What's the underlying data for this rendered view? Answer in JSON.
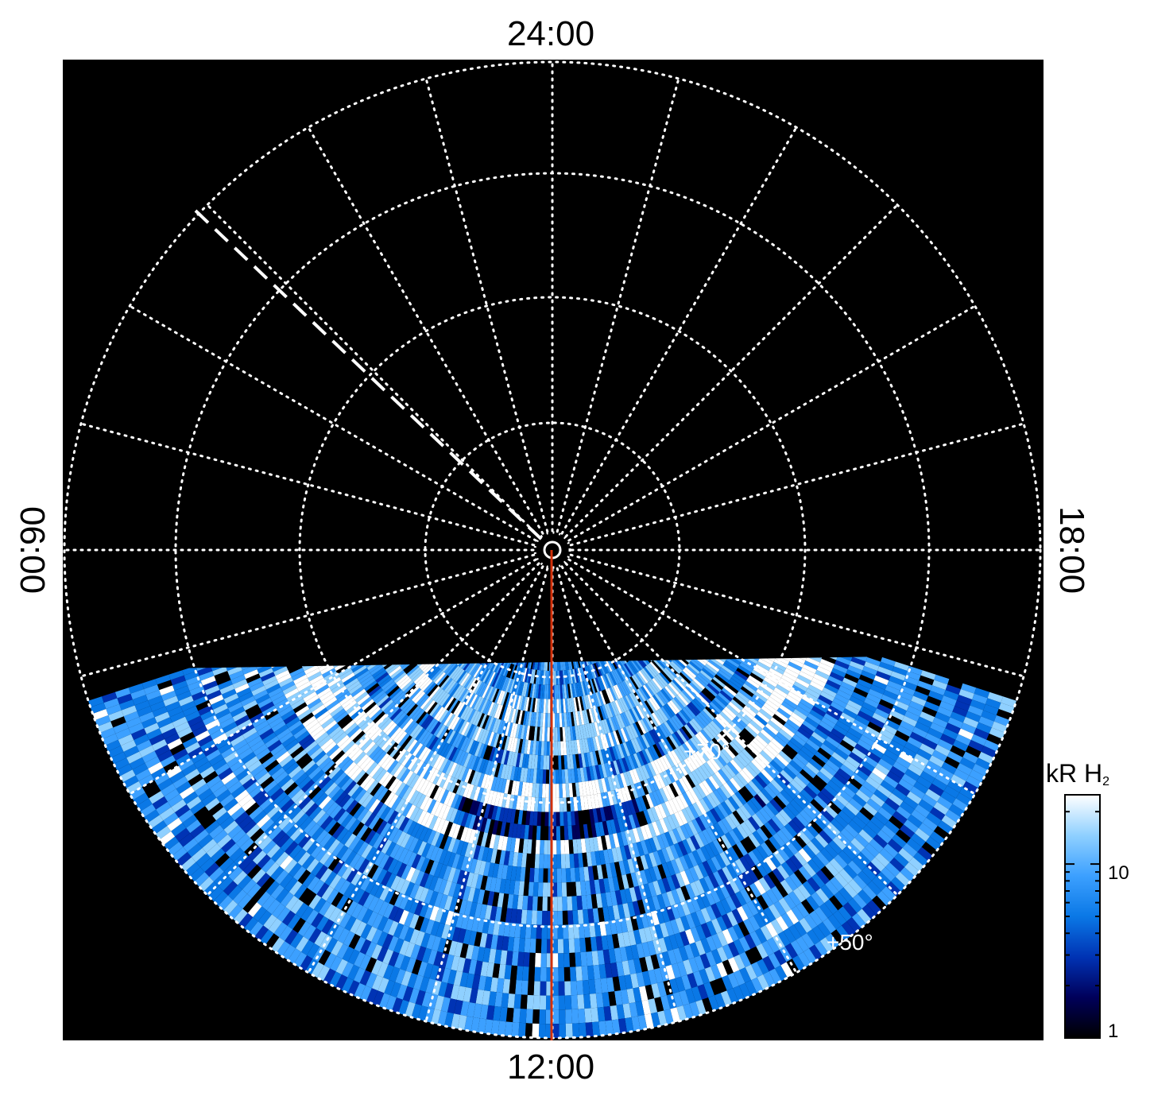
{
  "labels": {
    "top": "24:00",
    "bottom": "12:00",
    "left": "06:00",
    "right": "18:00"
  },
  "annotations": {
    "lat_inner": "+70°",
    "lat_outer": "+50°"
  },
  "colorbar": {
    "title": "kR H",
    "title_sub": "2",
    "tick_high": "10",
    "tick_low": "1",
    "scale": "log",
    "gradient": [
      "#000000",
      "#00005a",
      "#0033b4",
      "#0a78e6",
      "#3ca0ff",
      "#8fd0ff",
      "#ffffff"
    ]
  },
  "colors": {
    "background": "#000000",
    "grid": "#ffffff",
    "meridian_line": "#d2300a"
  }
}
